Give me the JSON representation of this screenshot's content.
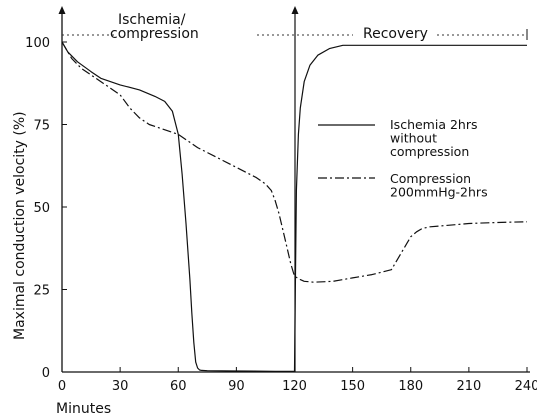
{
  "chart_data": {
    "type": "line",
    "title": "",
    "xlabel": "Minutes",
    "ylabel": "Maximal conduction velocity (%)",
    "xlim": [
      0,
      240
    ],
    "ylim": [
      0,
      105
    ],
    "xticks": [
      "0",
      "30",
      "60",
      "90",
      "120",
      "150",
      "180",
      "210",
      "240"
    ],
    "yticks": [
      "0",
      "25",
      "50",
      "75",
      "100"
    ],
    "grid": false,
    "phases": [
      {
        "label": "Ischemia/\ncompression",
        "x_range": [
          0,
          122
        ]
      },
      {
        "label": "Recovery",
        "x_range": [
          122,
          240
        ]
      }
    ],
    "series": [
      {
        "name": "Ischemia 2hrs\nwithout\ncompression",
        "style": "solid",
        "x": [
          0,
          3,
          8,
          15,
          20,
          30,
          40,
          48,
          53,
          57,
          60,
          62,
          64,
          66,
          67,
          68,
          69,
          70,
          71,
          72,
          75,
          90,
          110,
          119,
          120,
          120.5,
          121,
          122,
          123,
          125,
          128,
          132,
          138,
          145,
          150,
          180,
          210,
          240
        ],
        "y": [
          100,
          97,
          94,
          91,
          89,
          87,
          85.5,
          83.5,
          82,
          79,
          72,
          60,
          45,
          28,
          18,
          9,
          3,
          1.2,
          0.6,
          0.5,
          0.4,
          0.3,
          0.2,
          0.2,
          0.2,
          30,
          55,
          72,
          80,
          88,
          93,
          96,
          98,
          99,
          99,
          99,
          99,
          99
        ]
      },
      {
        "name": "Compression\n200mmHg-2hrs",
        "style": "dashdot",
        "x": [
          0,
          5,
          10,
          20,
          30,
          35,
          40,
          45,
          50,
          55,
          60,
          70,
          80,
          90,
          100,
          105,
          108,
          110,
          112,
          114,
          116,
          118,
          120,
          123,
          125,
          130,
          140,
          150,
          160,
          170,
          172,
          175,
          178,
          180,
          183,
          186,
          190,
          200,
          210,
          220,
          230,
          240
        ],
        "y": [
          100,
          95,
          92,
          88,
          84,
          80,
          77,
          75,
          74,
          73,
          72,
          68,
          65,
          62,
          59,
          57,
          55,
          52,
          48,
          43,
          38,
          33,
          29,
          28,
          27.5,
          27.2,
          27.5,
          28.5,
          29.5,
          31,
          33,
          36,
          39,
          41,
          42.5,
          43.5,
          44,
          44.5,
          45,
          45.2,
          45.4,
          45.5
        ]
      }
    ]
  }
}
